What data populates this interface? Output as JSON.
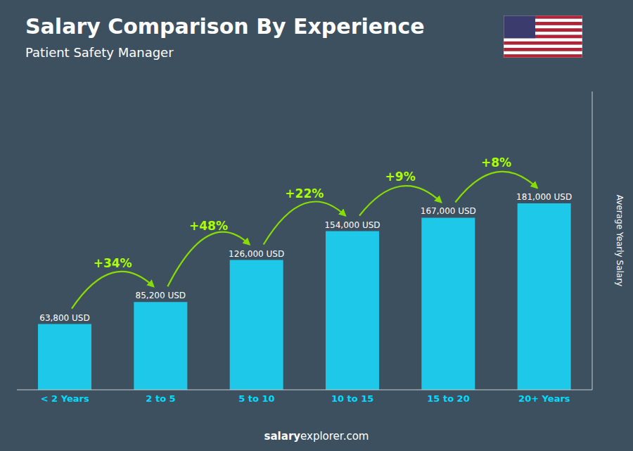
{
  "chart_data": {
    "type": "bar",
    "title": "Salary Comparison By Experience",
    "subtitle": "Patient Safety Manager",
    "ylabel": "Average Yearly Salary",
    "categories": [
      "< 2 Years",
      "2 to 5",
      "5 to 10",
      "10 to 15",
      "15 to 20",
      "20+ Years"
    ],
    "values": [
      63800,
      85200,
      126000,
      154000,
      167000,
      181000
    ],
    "value_labels": [
      "63,800 USD",
      "85,200 USD",
      "126,000 USD",
      "154,000 USD",
      "167,000 USD",
      "181,000 USD"
    ],
    "data_labels": true,
    "color": "#1ec8e8",
    "ylim": [
      0,
      289600
    ],
    "tick_labels": "x",
    "grid": false,
    "annotations": [
      "+34%",
      "+48%",
      "+22%",
      "+9%",
      "+8%"
    ],
    "footer": [
      "salary",
      "explorer.com"
    ]
  }
}
